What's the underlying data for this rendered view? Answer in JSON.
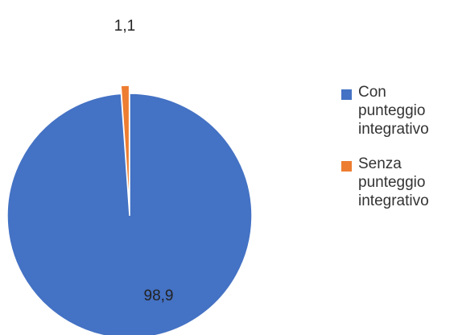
{
  "chart_data": {
    "type": "pie",
    "categories": [
      "Con punteggio integrativo",
      "Senza punteggio integrativo"
    ],
    "values": [
      98.9,
      1.1
    ],
    "value_labels": [
      "98,9",
      "1,1"
    ],
    "colors": [
      "#4472C4",
      "#ED7D31"
    ],
    "legend_position": "right",
    "exploded_slice": "Senza punteggio integrativo"
  }
}
